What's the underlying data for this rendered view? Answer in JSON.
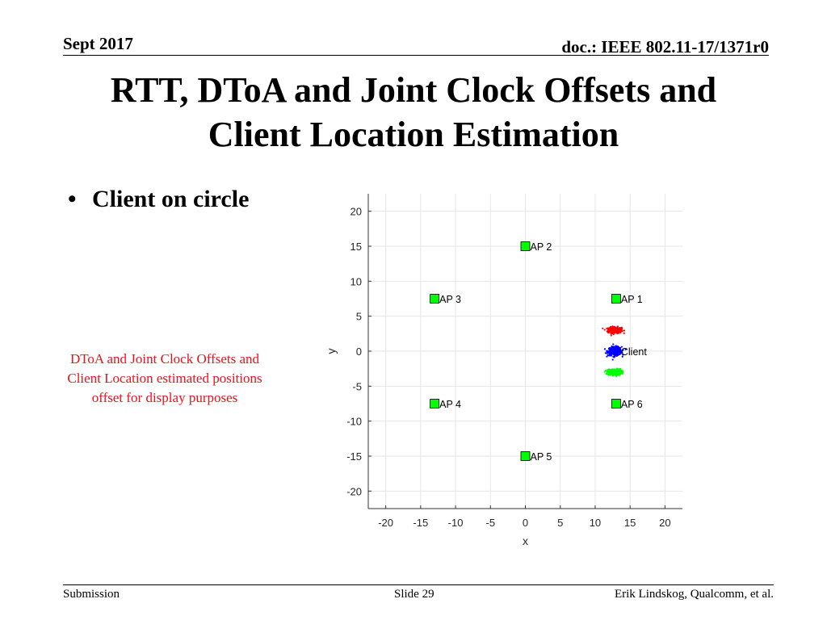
{
  "header": {
    "date": "Sept 2017",
    "doc": "doc.: IEEE 802.11-17/1371r0"
  },
  "title": {
    "line1": "RTT, DToA and Joint Clock Offsets and",
    "line2": "Client Location Estimation"
  },
  "bullet": {
    "text": "Client on circle"
  },
  "note": {
    "line1": "DToA and Joint Clock Offsets and",
    "line2": "Client Location estimated positions",
    "line3": "offset for display purposes"
  },
  "footer": {
    "left": "Submission",
    "center": "Slide 29",
    "right": "Erik Lindskog, Qualcomm, et al."
  },
  "colors": {
    "note": "#e8131b",
    "ap_marker": "#00ff00",
    "cluster_red": "#ff0000",
    "cluster_blue": "#0000ff",
    "cluster_green": "#00ff00"
  },
  "chart_data": {
    "type": "scatter",
    "xlabel": "x",
    "ylabel": "y",
    "xlim": [
      -22.5,
      22.5
    ],
    "ylim": [
      -22.5,
      22.5
    ],
    "xticks": [
      -20,
      -15,
      -10,
      -5,
      0,
      5,
      10,
      15,
      20
    ],
    "yticks": [
      20,
      15,
      10,
      5,
      0,
      -5,
      -10,
      -15,
      -20
    ],
    "grid": true,
    "access_points": [
      {
        "label": "AP 1",
        "x": 13,
        "y": 7.5
      },
      {
        "label": "AP 2",
        "x": 0,
        "y": 15
      },
      {
        "label": "AP 3",
        "x": -13,
        "y": 7.5
      },
      {
        "label": "AP 4",
        "x": -13,
        "y": -7.5
      },
      {
        "label": "AP 5",
        "x": 0,
        "y": -15
      },
      {
        "label": "AP 6",
        "x": 13,
        "y": -7.5
      }
    ],
    "client": {
      "label": "Client",
      "x": 13,
      "y": 0
    },
    "clusters": [
      {
        "color": "red",
        "cx": 12.8,
        "cy": 3,
        "sx": 0.9,
        "sy": 0.4,
        "n": 280
      },
      {
        "color": "blue",
        "cx": 12.8,
        "cy": 0,
        "sx": 0.9,
        "sy": 0.55,
        "n": 380
      },
      {
        "color": "green",
        "cx": 12.8,
        "cy": -3,
        "sx": 0.9,
        "sy": 0.4,
        "n": 280
      }
    ]
  }
}
